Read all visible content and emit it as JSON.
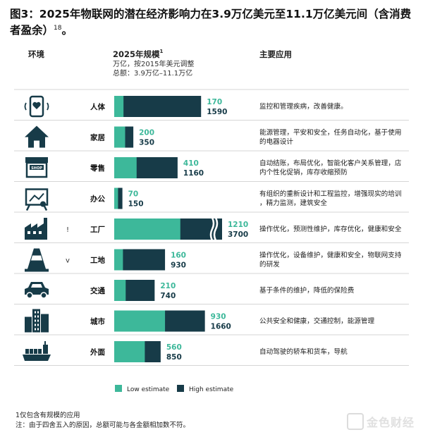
{
  "title_main": "图3：2025年物联网的潜在经济影响力在3.9万亿美元至11.1万亿美元间（含消费者盈余）",
  "title_sup": "18",
  "title_end": "。",
  "headers": {
    "env": "环境",
    "scale": "2025年规模",
    "scale_sup": "1",
    "scale_unit": "万亿，按2015年美元调整",
    "scale_total": "总额：3.9万亿–11.1万亿",
    "apps": "主要应用"
  },
  "colors": {
    "low": "#3db89a",
    "high": "#173b48",
    "divider": "#c8c8c8",
    "icon": "#173b48"
  },
  "legend": {
    "low_label": "Low estimate",
    "high_label": "High estimate"
  },
  "chart_data": {
    "type": "bar",
    "orientation": "horizontal",
    "stacked": "overlay",
    "unit": "万亿美元 (2015)",
    "categories": [
      "人体",
      "家居",
      "零售",
      "办公",
      "工厂",
      "工地",
      "交通",
      "城市",
      "外面"
    ],
    "low_labels": [
      "170",
      "200",
      "410",
      "70",
      "1210",
      "160",
      "210",
      "930",
      "560"
    ],
    "high_labels": [
      "1590",
      "350",
      "1160",
      "150",
      "3700",
      "930",
      "740",
      "1660",
      "850"
    ],
    "series": [
      {
        "name": "Low estimate",
        "values": [
          170,
          200,
          410,
          70,
          1210,
          160,
          210,
          930,
          560
        ]
      },
      {
        "name": "High estimate",
        "values": [
          1590,
          350,
          1160,
          150,
          3700,
          930,
          740,
          1660,
          850
        ]
      }
    ],
    "broken_axis_category": "工厂",
    "applications": [
      "监控和管理疾病，改善健康。",
      "能源管理，平安和安全，任务自动化，基于使用的电器设计",
      "自动结账，布局优化，智能化客户关系管理，店内个性化促销，库存收缩预防",
      "有组织的重新设计和工程监控，增强现实的培训，精力监测，建筑安全",
      "操作优化，预测性维护，库存优化，健康和安全",
      "操作优化，设备维护，健康和安全，物联网支持的研发",
      "基于条件的维护，降低的保险费",
      "公共安全和健康，交通控制，能源管理",
      "自动驾驶的轿车和货车，导航"
    ],
    "icons": [
      "phone-heart-icon",
      "house-icon",
      "shop-icon",
      "presentation-icon",
      "factory-icon",
      "traffic-cone-icon",
      "car-icon",
      "city-icon",
      "ship-icon"
    ],
    "side_marks": [
      "",
      "",
      "",
      "",
      "!",
      "v",
      "",
      "",
      ""
    ]
  },
  "footnotes": {
    "note1": "1仅包含有规模的应用",
    "note2": "注：由于四舍五入的原因，总额可能与各金额相加数不符。"
  },
  "watermark": "金色财经"
}
